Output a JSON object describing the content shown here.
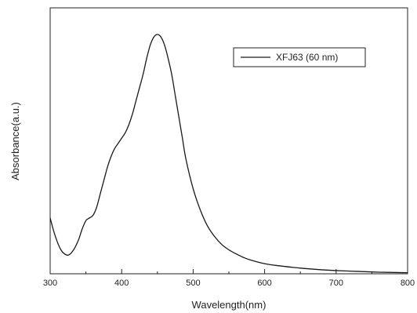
{
  "chart_data": {
    "type": "line",
    "title": "",
    "xlabel": "Wavelength(nm)",
    "ylabel": "Absorbance(a.u.)",
    "xlim": [
      300,
      800
    ],
    "ylim": [
      0,
      1
    ],
    "x_ticks": [
      300,
      400,
      500,
      600,
      700,
      800
    ],
    "x_tick_labels": [
      "300",
      "400",
      "500",
      "600",
      "700",
      "800"
    ],
    "y_tick_labels_shown": false,
    "grid": false,
    "legend_position": "top-right",
    "series": [
      {
        "name": "XFJ63 (60 nm)",
        "color": "#1a1a1a",
        "x": [
          300,
          305,
          310,
          315,
          320,
          325,
          330,
          335,
          340,
          345,
          350,
          355,
          360,
          365,
          370,
          375,
          380,
          385,
          390,
          395,
          400,
          405,
          410,
          415,
          420,
          425,
          430,
          435,
          440,
          445,
          450,
          455,
          460,
          465,
          470,
          475,
          480,
          485,
          490,
          500,
          510,
          520,
          530,
          540,
          550,
          560,
          570,
          580,
          600,
          620,
          640,
          660,
          680,
          700,
          720,
          740,
          760,
          780,
          800
        ],
        "y": [
          0.21,
          0.16,
          0.12,
          0.09,
          0.075,
          0.07,
          0.08,
          0.1,
          0.13,
          0.17,
          0.2,
          0.21,
          0.22,
          0.25,
          0.3,
          0.35,
          0.4,
          0.44,
          0.47,
          0.49,
          0.51,
          0.53,
          0.56,
          0.6,
          0.65,
          0.7,
          0.75,
          0.81,
          0.86,
          0.89,
          0.9,
          0.89,
          0.86,
          0.81,
          0.75,
          0.67,
          0.59,
          0.51,
          0.43,
          0.32,
          0.24,
          0.18,
          0.14,
          0.11,
          0.09,
          0.075,
          0.062,
          0.052,
          0.038,
          0.03,
          0.024,
          0.019,
          0.015,
          0.012,
          0.01,
          0.008,
          0.006,
          0.005,
          0.004
        ]
      }
    ]
  }
}
